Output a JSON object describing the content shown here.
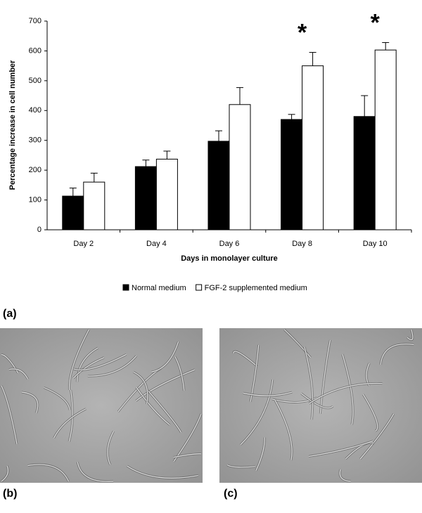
{
  "chart_data": {
    "type": "bar",
    "y_label": "Percentage increase in cell number",
    "x_label": "Days in monolayer culture",
    "categories": [
      "Day 2",
      "Day 4",
      "Day 6",
      "Day 8",
      "Day 10"
    ],
    "series": [
      {
        "name": "Normal medium",
        "color": "#000000",
        "values": [
          113,
          212,
          297,
          370,
          380
        ],
        "errors": [
          27,
          22,
          35,
          17,
          70
        ]
      },
      {
        "name": "FGF-2 supplemented medium",
        "color": "#ffffff",
        "values": [
          160,
          237,
          420,
          550,
          603
        ],
        "errors": [
          30,
          27,
          57,
          45,
          25
        ]
      }
    ],
    "ylim": [
      0,
      700
    ],
    "yticks": [
      0,
      100,
      200,
      300,
      400,
      500,
      600,
      700
    ],
    "legend": "bottom",
    "annotations": [
      {
        "text": "*",
        "category": "Day 8"
      },
      {
        "text": "*",
        "category": "Day 10"
      }
    ]
  },
  "panels": {
    "a": "(a)",
    "b": "(b)",
    "c": "(c)"
  }
}
